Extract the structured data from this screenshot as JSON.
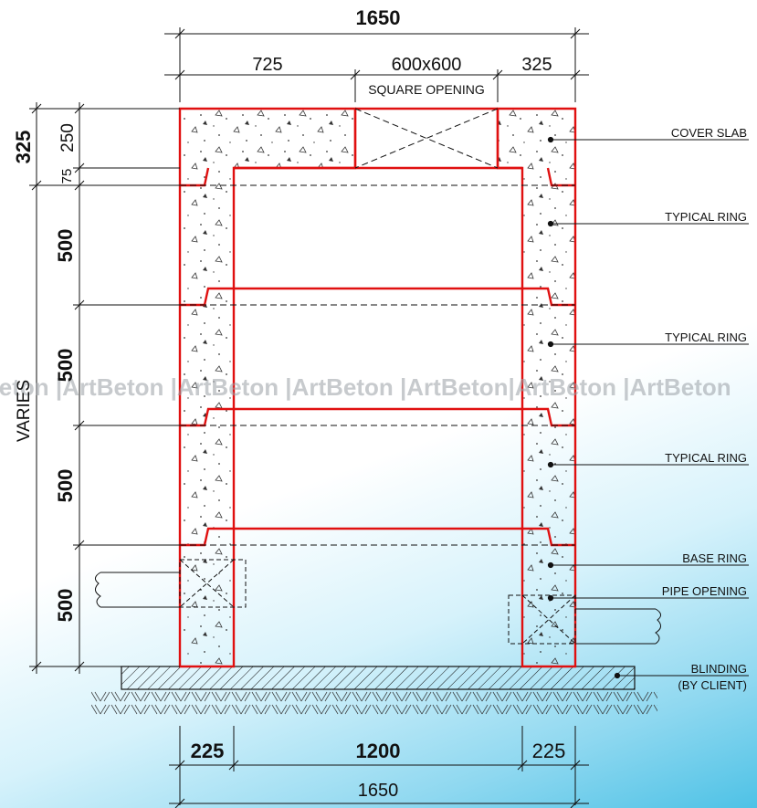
{
  "dimensions": {
    "top_total": "1650",
    "top_left": "725",
    "top_opening": "600x600",
    "top_right": "325",
    "opening_note": "SQUARE OPENING",
    "slab_total": "325",
    "slab_thickness": "250",
    "slab_step": "75",
    "ring_heights": [
      "500",
      "500",
      "500",
      "500"
    ],
    "varies": "VARIES",
    "bottom_left": "225",
    "bottom_mid": "1200",
    "bottom_right": "225",
    "bottom_total": "1650"
  },
  "labels": {
    "cover_slab": "COVER SLAB",
    "typical_ring_1": "TYPICAL RING",
    "typical_ring_2": "TYPICAL RING",
    "typical_ring_3": "TYPICAL RING",
    "base_ring": "BASE RING",
    "pipe_opening": "PIPE OPENING",
    "blinding_1": "BLINDING",
    "blinding_2": "(BY CLIENT)"
  },
  "watermark": "Beton |ArtBeton |ArtBeton |ArtBeton |ArtBeton|ArtBeton |ArtBeton",
  "colors": {
    "outline": "#e01010",
    "line": "#111111",
    "watermark": "#9aa0a6"
  }
}
